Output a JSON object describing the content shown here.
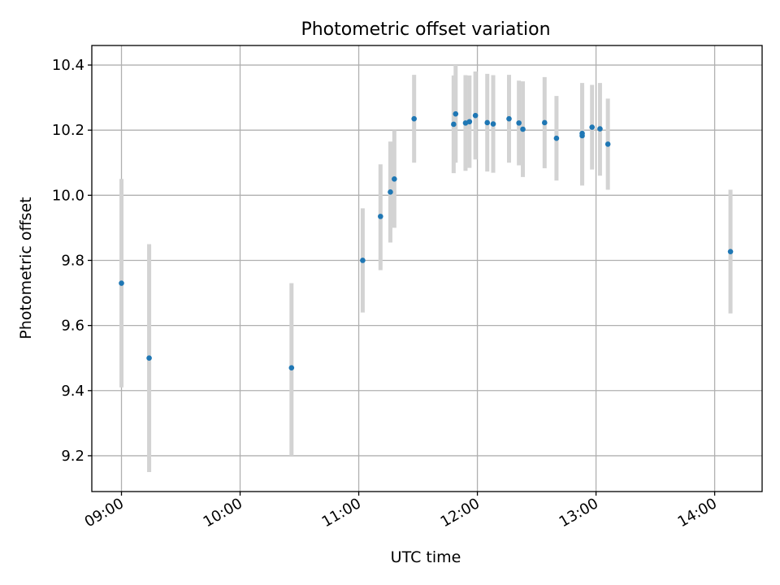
{
  "chart_data": {
    "type": "scatter",
    "title": "Photometric offset variation",
    "xlabel": "UTC time",
    "ylabel": "Photometric offset",
    "x_ticks": [
      "09:00",
      "10:00",
      "11:00",
      "12:00",
      "13:00",
      "14:00"
    ],
    "y_ticks": [
      "9.2",
      "9.4",
      "9.6",
      "9.8",
      "10.0",
      "10.2",
      "10.4"
    ],
    "xlim": [
      "08:45",
      "14:24"
    ],
    "ylim": [
      9.09,
      10.46
    ],
    "grid": true,
    "colors": {
      "point": "#1f77b4",
      "errorbar": "#d3d3d3",
      "grid": "#b0b0b0"
    },
    "points": [
      {
        "time": "09:00",
        "y": 9.73,
        "ylo": 9.41,
        "yhi": 10.05
      },
      {
        "time": "09:14",
        "y": 9.5,
        "ylo": 9.15,
        "yhi": 9.85
      },
      {
        "time": "10:26",
        "y": 9.47,
        "ylo": 9.2,
        "yhi": 9.73
      },
      {
        "time": "11:02",
        "y": 9.8,
        "ylo": 9.64,
        "yhi": 9.96
      },
      {
        "time": "11:11",
        "y": 9.935,
        "ylo": 9.77,
        "yhi": 10.095
      },
      {
        "time": "11:16",
        "y": 10.01,
        "ylo": 9.855,
        "yhi": 10.165
      },
      {
        "time": "11:18",
        "y": 10.05,
        "ylo": 9.9,
        "yhi": 10.2
      },
      {
        "time": "11:28",
        "y": 10.235,
        "ylo": 10.1,
        "yhi": 10.37
      },
      {
        "time": "11:48",
        "y": 10.218,
        "ylo": 10.068,
        "yhi": 10.368
      },
      {
        "time": "11:49",
        "y": 10.25,
        "ylo": 10.1,
        "yhi": 10.4
      },
      {
        "time": "11:54",
        "y": 10.222,
        "ylo": 10.075,
        "yhi": 10.369
      },
      {
        "time": "11:56",
        "y": 10.226,
        "ylo": 10.084,
        "yhi": 10.368
      },
      {
        "time": "11:59",
        "y": 10.245,
        "ylo": 10.11,
        "yhi": 10.38
      },
      {
        "time": "12:05",
        "y": 10.223,
        "ylo": 10.073,
        "yhi": 10.373
      },
      {
        "time": "12:08",
        "y": 10.219,
        "ylo": 10.069,
        "yhi": 10.369
      },
      {
        "time": "12:16",
        "y": 10.235,
        "ylo": 10.1,
        "yhi": 10.37
      },
      {
        "time": "12:21",
        "y": 10.222,
        "ylo": 10.092,
        "yhi": 10.352
      },
      {
        "time": "12:23",
        "y": 10.203,
        "ylo": 10.056,
        "yhi": 10.35
      },
      {
        "time": "12:34",
        "y": 10.223,
        "ylo": 10.083,
        "yhi": 10.363
      },
      {
        "time": "12:40",
        "y": 10.175,
        "ylo": 10.045,
        "yhi": 10.305
      },
      {
        "time": "12:53",
        "y": 10.19,
        "ylo": 10.035,
        "yhi": 10.345
      },
      {
        "time": "12:53",
        "y": 10.183,
        "ylo": 10.03,
        "yhi": 10.336
      },
      {
        "time": "12:58",
        "y": 10.209,
        "ylo": 10.079,
        "yhi": 10.339
      },
      {
        "time": "13:02",
        "y": 10.204,
        "ylo": 10.06,
        "yhi": 10.345
      },
      {
        "time": "13:06",
        "y": 10.157,
        "ylo": 10.017,
        "yhi": 10.297
      },
      {
        "time": "14:08",
        "y": 9.827,
        "ylo": 9.637,
        "yhi": 10.017
      }
    ]
  }
}
